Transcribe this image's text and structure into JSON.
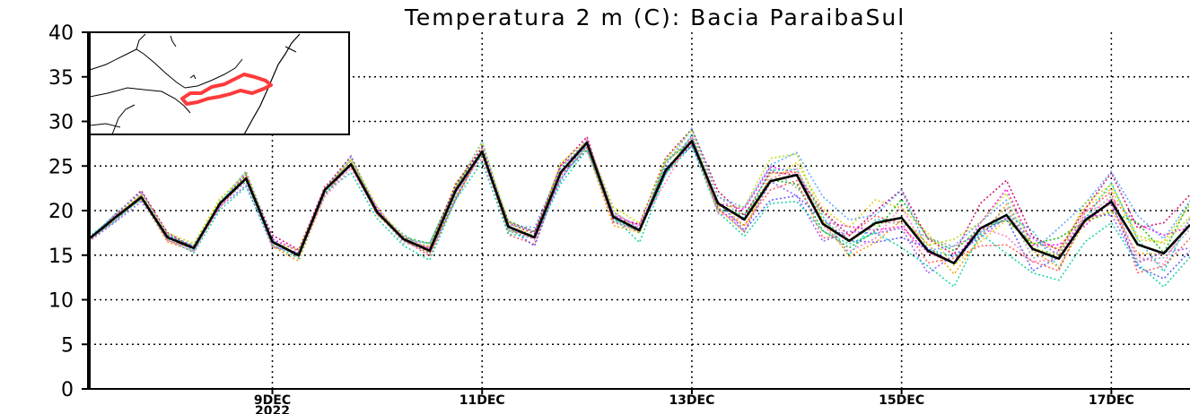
{
  "chart_data": {
    "type": "line",
    "title": "Temperatura 2 m (C): Bacia ParaibaSul",
    "xlabel": "",
    "ylabel": "",
    "ylim": [
      0,
      40
    ],
    "yticks": [
      "0",
      "5",
      "10",
      "15",
      "20",
      "25",
      "30",
      "35",
      "40"
    ],
    "x_axis": {
      "unit": "hours (6-hourly steps)",
      "start": "2022-12-07 06Z",
      "range_hours": [
        0,
        252
      ],
      "tick_labels": [
        {
          "label": "9DEC",
          "sublabel": "2022",
          "hour": 42
        },
        {
          "label": "11DEC",
          "sublabel": "",
          "hour": 90
        },
        {
          "label": "13DEC",
          "sublabel": "",
          "hour": 138
        },
        {
          "label": "15DEC",
          "sublabel": "",
          "hour": 186
        },
        {
          "label": "17DEC",
          "sublabel": "",
          "hour": 234
        }
      ],
      "vertical_gridlines": true
    },
    "grid": true,
    "legend": "none",
    "series": [
      {
        "role": "ensemble-mean",
        "color": "#000000",
        "style": "solid",
        "values": [
          16.8,
          19.2,
          21.5,
          17.0,
          15.8,
          20.8,
          23.6,
          16.5,
          15.0,
          22.3,
          25.2,
          19.8,
          16.8,
          15.5,
          22.3,
          26.6,
          18.2,
          17.0,
          24.3,
          27.6,
          19.3,
          17.8,
          24.5,
          27.8,
          20.8,
          19.0,
          23.3,
          24.0,
          18.5,
          16.6,
          18.6,
          19.2,
          15.5,
          14.1,
          18.0,
          19.5,
          15.7,
          14.6,
          18.9,
          21.0,
          16.2,
          15.2,
          18.4
        ]
      }
    ],
    "ensemble_members": {
      "style": "dotted",
      "colors": [
        "#ff00ff",
        "#00c8c8",
        "#e6c800",
        "#00b400",
        "#ff5050",
        "#5050ff",
        "#ff9600",
        "#9650ff",
        "#00d2a0",
        "#c80064",
        "#50a0ff",
        "#a0a0a0",
        "#b4dc00",
        "#ff78c8"
      ],
      "spread": [
        0.4,
        0.5,
        0.6,
        0.5,
        0.5,
        0.6,
        0.7,
        0.6,
        0.6,
        0.7,
        0.7,
        0.7,
        0.7,
        0.8,
        0.9,
        0.9,
        0.8,
        0.8,
        1.0,
        1.1,
        1.0,
        1.0,
        1.2,
        1.4,
        1.2,
        1.3,
        2.0,
        2.6,
        2.3,
        2.2,
        2.6,
        3.0,
        2.5,
        2.4,
        2.6,
        3.0,
        2.6,
        2.5,
        2.8,
        3.0,
        2.8,
        2.8,
        2.6
      ]
    },
    "inset_map": {
      "description": "Map of southeastern Brazil with Paraiba do Sul basin outlined",
      "basin_color": "#ff3b3b"
    }
  }
}
